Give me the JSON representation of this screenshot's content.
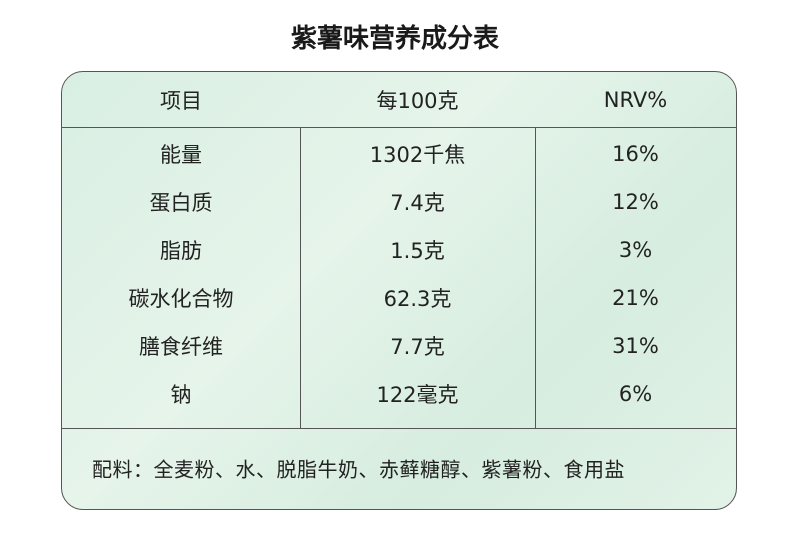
{
  "header": {
    "title": "紫薯味营养成分表"
  },
  "table": {
    "headers": [
      "项目",
      "每100克",
      "NRV%"
    ],
    "rows": [
      [
        "能量",
        "1302千焦",
        "16%"
      ],
      [
        "蛋白质",
        "7.4克",
        "12%"
      ],
      [
        "脂肪",
        "1.5克",
        "3%"
      ],
      [
        "碳水化合物",
        "62.3克",
        "21%"
      ],
      [
        "膳食纤维",
        "7.7克",
        "31%"
      ],
      [
        "钠",
        "122毫克",
        "6%"
      ]
    ]
  },
  "footer": {
    "ingredients": "配料：全麦粉、水、脱脂牛奶、赤藓糖醇、紫薯粉、食用盐"
  }
}
